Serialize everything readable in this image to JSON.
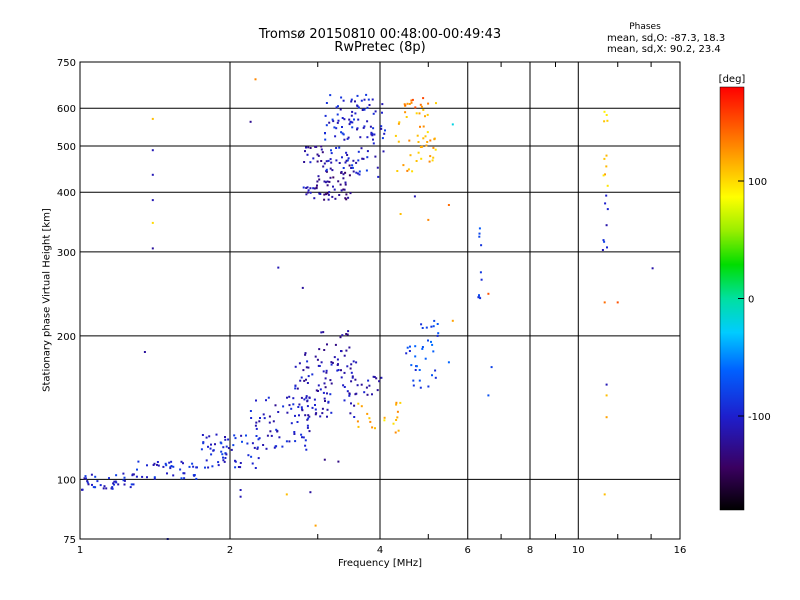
{
  "chart_data": {
    "type": "scatter",
    "title": "Tromsø 20150810 00:48:00-00:49:43",
    "subtitle": "RwPretec (8p)",
    "stats": {
      "label": "Phases",
      "o_mode": "mean, sd,O: -87.3, 18.3",
      "x_mode": "mean, sd,X:  90.2, 23.4"
    },
    "xlabel": "Frequency [MHz]",
    "ylabel": "Stationary phase Virtual Height [km]",
    "xscale": "log",
    "yscale": "log",
    "xlim": [
      1,
      16
    ],
    "ylim": [
      75,
      750
    ],
    "xticks": [
      1,
      2,
      4,
      6,
      8,
      10,
      16
    ],
    "yticks": [
      75,
      100,
      200,
      300,
      400,
      500,
      600,
      750
    ],
    "grid": true,
    "colorbar": {
      "label": "[deg]",
      "range": [
        -180,
        180
      ],
      "ticks": [
        100,
        0,
        -100
      ]
    },
    "clusters": [
      {
        "x_range": [
          1.0,
          1.3
        ],
        "y_range": [
          95,
          103
        ],
        "phase": -100,
        "n": 40
      },
      {
        "x_range": [
          1.3,
          1.75
        ],
        "y_range": [
          100,
          110
        ],
        "phase": -95,
        "n": 40
      },
      {
        "x_range": [
          1.75,
          2.3
        ],
        "y_range": [
          105,
          125
        ],
        "phase": -95,
        "n": 60
      },
      {
        "x_range": [
          2.2,
          2.9
        ],
        "y_range": [
          115,
          150
        ],
        "phase": -105,
        "n": 70
      },
      {
        "x_range": [
          2.7,
          3.6
        ],
        "y_range": [
          135,
          185
        ],
        "phase": -110,
        "n": 90
      },
      {
        "x_range": [
          3.0,
          3.6
        ],
        "y_range": [
          175,
          205
        ],
        "phase": -120,
        "n": 20
      },
      {
        "x_range": [
          3.5,
          4.1
        ],
        "y_range": [
          150,
          165
        ],
        "phase": -115,
        "n": 18
      },
      {
        "x_range": [
          3.6,
          4.4
        ],
        "y_range": [
          125,
          145
        ],
        "phase": 110,
        "n": 20
      },
      {
        "x_range": [
          4.5,
          5.2
        ],
        "y_range": [
          155,
          195
        ],
        "phase": -75,
        "n": 25
      },
      {
        "x_range": [
          4.8,
          5.3
        ],
        "y_range": [
          195,
          215
        ],
        "phase": -80,
        "n": 10
      },
      {
        "x_range": [
          2.8,
          3.0
        ],
        "y_range": [
          395,
          410
        ],
        "phase": -110,
        "n": 10
      },
      {
        "x_range": [
          2.8,
          3.1
        ],
        "y_range": [
          460,
          500
        ],
        "phase": -115,
        "n": 15
      },
      {
        "x_range": [
          2.95,
          3.5
        ],
        "y_range": [
          385,
          470
        ],
        "phase": -125,
        "n": 60
      },
      {
        "x_range": [
          3.1,
          4.1
        ],
        "y_range": [
          430,
          640
        ],
        "phase": -100,
        "n": 120
      },
      {
        "x_range": [
          4.3,
          5.2
        ],
        "y_range": [
          440,
          620
        ],
        "phase": 115,
        "n": 45
      },
      {
        "x_range": [
          4.4,
          4.9
        ],
        "y_range": [
          570,
          640
        ],
        "phase": 140,
        "n": 10
      },
      {
        "x_range": [
          6.3,
          6.4
        ],
        "y_range": [
          230,
          380
        ],
        "phase": -85,
        "n": 10
      },
      {
        "x_range": [
          11.2,
          11.5
        ],
        "y_range": [
          300,
          400
        ],
        "phase": -100,
        "n": 8
      },
      {
        "x_range": [
          11.2,
          11.5
        ],
        "y_range": [
          400,
          630
        ],
        "phase": 110,
        "n": 10
      }
    ],
    "points": [
      {
        "x": 1.4,
        "y": 570,
        "phase": 110
      },
      {
        "x": 1.4,
        "y": 490,
        "phase": -110
      },
      {
        "x": 1.4,
        "y": 435,
        "phase": -110
      },
      {
        "x": 1.4,
        "y": 385,
        "phase": -110
      },
      {
        "x": 1.4,
        "y": 345,
        "phase": 100
      },
      {
        "x": 1.4,
        "y": 305,
        "phase": -120
      },
      {
        "x": 1.35,
        "y": 185,
        "phase": -120
      },
      {
        "x": 2.25,
        "y": 690,
        "phase": 130
      },
      {
        "x": 2.2,
        "y": 562,
        "phase": -125
      },
      {
        "x": 2.5,
        "y": 278,
        "phase": -110
      },
      {
        "x": 2.8,
        "y": 252,
        "phase": -120
      },
      {
        "x": 2.1,
        "y": 92,
        "phase": -110
      },
      {
        "x": 2.1,
        "y": 95,
        "phase": -110
      },
      {
        "x": 2.6,
        "y": 93,
        "phase": 110
      },
      {
        "x": 2.9,
        "y": 94,
        "phase": -120
      },
      {
        "x": 2.97,
        "y": 80,
        "phase": 120
      },
      {
        "x": 3.1,
        "y": 110,
        "phase": -130
      },
      {
        "x": 3.3,
        "y": 109,
        "phase": -130
      },
      {
        "x": 4.7,
        "y": 392,
        "phase": -110
      },
      {
        "x": 4.4,
        "y": 360,
        "phase": 110
      },
      {
        "x": 5.0,
        "y": 350,
        "phase": 130
      },
      {
        "x": 5.5,
        "y": 376,
        "phase": 140
      },
      {
        "x": 5.6,
        "y": 215,
        "phase": 120
      },
      {
        "x": 5.5,
        "y": 176,
        "phase": -60
      },
      {
        "x": 6.7,
        "y": 172,
        "phase": -80
      },
      {
        "x": 6.6,
        "y": 150,
        "phase": -70
      },
      {
        "x": 6.6,
        "y": 245,
        "phase": 150
      },
      {
        "x": 11.3,
        "y": 235,
        "phase": 140
      },
      {
        "x": 11.4,
        "y": 158,
        "phase": -110
      },
      {
        "x": 11.4,
        "y": 150,
        "phase": 110
      },
      {
        "x": 11.4,
        "y": 135,
        "phase": 120
      },
      {
        "x": 11.3,
        "y": 93,
        "phase": 110
      },
      {
        "x": 12.0,
        "y": 235,
        "phase": 150
      },
      {
        "x": 14.1,
        "y": 277,
        "phase": -115
      },
      {
        "x": 1.5,
        "y": 75,
        "phase": -100
      },
      {
        "x": 5.6,
        "y": 555,
        "phase": -20
      }
    ]
  }
}
